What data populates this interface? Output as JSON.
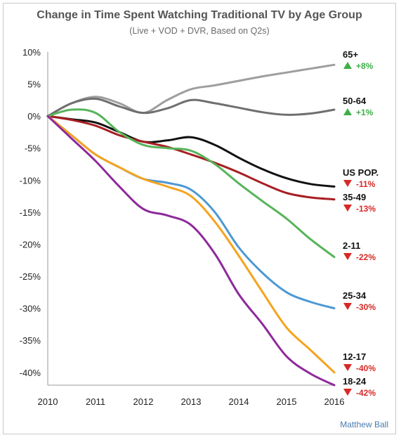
{
  "chart_data": {
    "type": "line",
    "title": "Change in Time Spent Watching Traditional TV by Age Group",
    "subtitle": "(Live + VOD + DVR, Based on Q2s)",
    "xlabel": "",
    "ylabel": "",
    "x_ticks": [
      "2010",
      "2011",
      "2012",
      "2013",
      "2014",
      "2015",
      "2016"
    ],
    "y_ticks": [
      "10%",
      "5%",
      "0%",
      "-5%",
      "-10%",
      "-15%",
      "-20%",
      "-25%",
      "-30%",
      "-35%",
      "-40%"
    ],
    "xlim": [
      2010,
      2016
    ],
    "ylim": [
      -42,
      10
    ],
    "grid": false,
    "x": [
      2010,
      2010.5,
      2011,
      2011.5,
      2012,
      2012.5,
      2013,
      2013.5,
      2014,
      2014.5,
      2015,
      2015.5,
      2016
    ],
    "series": [
      {
        "name": "65+",
        "change": "+8%",
        "direction": "up",
        "color": "#9e9e9e",
        "values": [
          0,
          2,
          3,
          2,
          0.5,
          2.5,
          4.2,
          4.8,
          5.5,
          6.2,
          6.8,
          7.4,
          8
        ]
      },
      {
        "name": "50-64",
        "change": "+1%",
        "direction": "up",
        "color": "#6f6f6f",
        "values": [
          0,
          2,
          2.7,
          1.5,
          0.5,
          1.2,
          2.5,
          2,
          1.3,
          0.6,
          0.2,
          0.4,
          1
        ]
      },
      {
        "name": "US POP.",
        "change": "-11%",
        "direction": "down",
        "color": "#111111",
        "values": [
          0,
          -0.5,
          -1,
          -2.5,
          -4,
          -3.8,
          -3.3,
          -4.5,
          -6.5,
          -8.3,
          -9.7,
          -10.6,
          -11
        ]
      },
      {
        "name": "35-49",
        "change": "-13%",
        "direction": "down",
        "color": "#a71e22",
        "values": [
          0,
          -0.6,
          -1.5,
          -3,
          -4,
          -4.8,
          -6,
          -7.3,
          -8.8,
          -10.5,
          -12,
          -12.7,
          -13
        ]
      },
      {
        "name": "2-11",
        "change": "-22%",
        "direction": "down",
        "color": "#56b45a",
        "values": [
          0,
          1,
          0.5,
          -2.5,
          -4.5,
          -5,
          -5.4,
          -7.5,
          -10.5,
          -13.3,
          -16,
          -19.2,
          -22
        ]
      },
      {
        "name": "25-34",
        "change": "-30%",
        "direction": "down",
        "color": "#4d98d3",
        "values": [
          0,
          -3,
          -6,
          -8,
          -9.8,
          -10.4,
          -11.5,
          -15,
          -20.5,
          -24.5,
          -27.5,
          -29,
          -30
        ]
      },
      {
        "name": "12-17",
        "change": "-40%",
        "direction": "down",
        "color": "#f5a31e",
        "values": [
          0,
          -3,
          -6,
          -8,
          -9.8,
          -11,
          -12.5,
          -16.5,
          -21.8,
          -27.5,
          -33,
          -36.5,
          -40
        ]
      },
      {
        "name": "18-24",
        "change": "-42%",
        "direction": "down",
        "color": "#8e2a9a",
        "values": [
          0,
          -3.5,
          -7,
          -11,
          -14.5,
          -15.5,
          -17,
          -21.5,
          -27.8,
          -32.5,
          -37.5,
          -40.2,
          -42
        ]
      }
    ],
    "credit": "Matthew Ball",
    "up_color": "#3fae49",
    "down_color": "#d62a27"
  }
}
